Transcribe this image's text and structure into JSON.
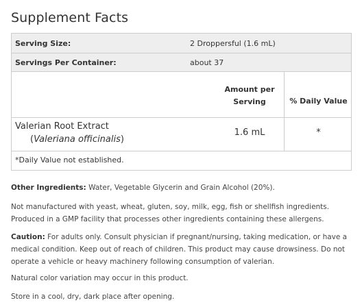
{
  "title": "Supplement Facts",
  "serving": {
    "size_label": "Serving Size:",
    "size_value": "2 Droppersful (1.6 mL)",
    "per_container_label": "Servings Per Container:",
    "per_container_value": "about 37"
  },
  "table_header": {
    "amount_line1": "Amount per",
    "amount_line2": "Serving",
    "daily_value": "% Daily Value"
  },
  "ingredients": [
    {
      "name": "Valerian Root Extract",
      "open_paren": "(",
      "latin": "Valeriana officinalis",
      "close_paren": ")",
      "amount": "1.6 mL",
      "daily_value": "*"
    }
  ],
  "footnote": "*Daily Value not established.",
  "other_ingredients": {
    "label": "Other Ingredients:",
    "text": " Water, Vegetable Glycerin and Grain Alcohol (20%)."
  },
  "allergen_statement": "Not manufactured with yeast, wheat, gluten, soy, milk, egg, fish or shellfish ingredients. Produced in a GMP facility that processes other ingredients containing these allergens.",
  "caution": {
    "label": "Caution:",
    "text": " For adults only. Consult physician if pregnant/nursing, taking medication, or have a medical condition. Keep out of reach of children. This product may cause drowsiness. Do not operate a vehicle or heavy machinery following consumption of valerian."
  },
  "color_note": "Natural color variation may occur in this product.",
  "storage_note": "Store in a cool, dry, dark place after opening."
}
